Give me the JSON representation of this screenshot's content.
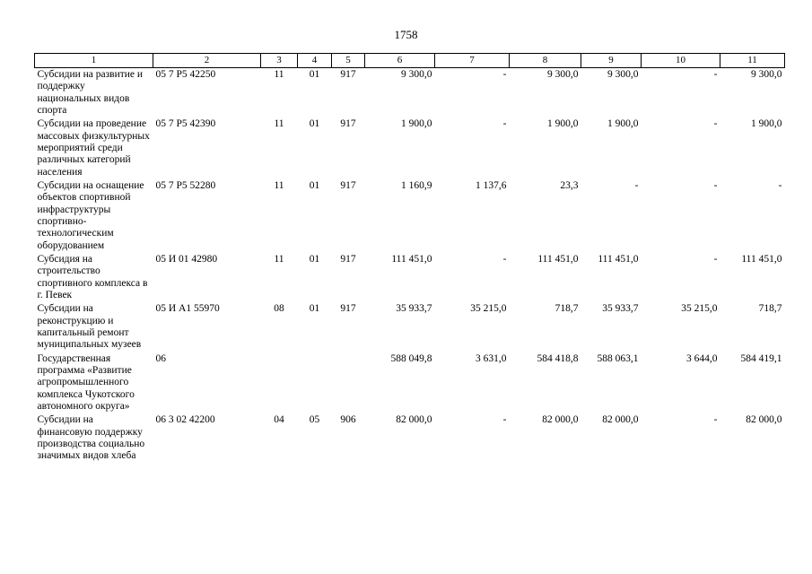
{
  "page": {
    "number": "1758"
  },
  "table": {
    "header": [
      "1",
      "2",
      "3",
      "4",
      "5",
      "6",
      "7",
      "8",
      "9",
      "10",
      "11"
    ],
    "rows": [
      {
        "cells": [
          "Субсидии на развитие и поддержку национальных видов спорта",
          "05 7 Р5 42250",
          "11",
          "01",
          "917",
          "9 300,0",
          "-",
          "9 300,0",
          "9 300,0",
          "-",
          "9 300,0"
        ]
      },
      {
        "cells": [
          "Субсидии на проведение массовых физкультурных мероприятий среди различных категорий населения",
          "05 7 Р5 42390",
          "11",
          "01",
          "917",
          "1 900,0",
          "-",
          "1 900,0",
          "1 900,0",
          "-",
          "1 900,0"
        ]
      },
      {
        "cells": [
          "Субсидии на оснащение объектов спортивной инфраструктуры спортивно-технологическим оборудованием",
          "05 7 Р5 52280",
          "11",
          "01",
          "917",
          "1 160,9",
          "1 137,6",
          "23,3",
          "-",
          "-",
          "-"
        ]
      },
      {
        "cells": [
          "Субсидия на строительство спортивного комплекса в г. Певек",
          "05 И 01 42980",
          "11",
          "01",
          "917",
          "111 451,0",
          "-",
          "111 451,0",
          "111 451,0",
          "-",
          "111 451,0"
        ]
      },
      {
        "cells": [
          "Субсидии на реконструкцию и капитальный ремонт муниципальных музеев",
          "05 И А1 55970",
          "08",
          "01",
          "917",
          "35 933,7",
          "35 215,0",
          "718,7",
          "35 933,7",
          "35 215,0",
          "718,7"
        ]
      },
      {
        "cells": [
          "Государственная программа «Развитие агропромышленного комплекса Чукотского автономного округа»",
          "06",
          "",
          "",
          "",
          "588 049,8",
          "3 631,0",
          "584 418,8",
          "588 063,1",
          "3 644,0",
          "584 419,1"
        ]
      },
      {
        "cells": [
          "Субсидии на финансовую поддержку производства социально значимых видов хлеба",
          "06 3 02 42200",
          "04",
          "05",
          "906",
          "82 000,0",
          "-",
          "82 000,0",
          "82 000,0",
          "-",
          "82 000,0"
        ]
      }
    ]
  }
}
